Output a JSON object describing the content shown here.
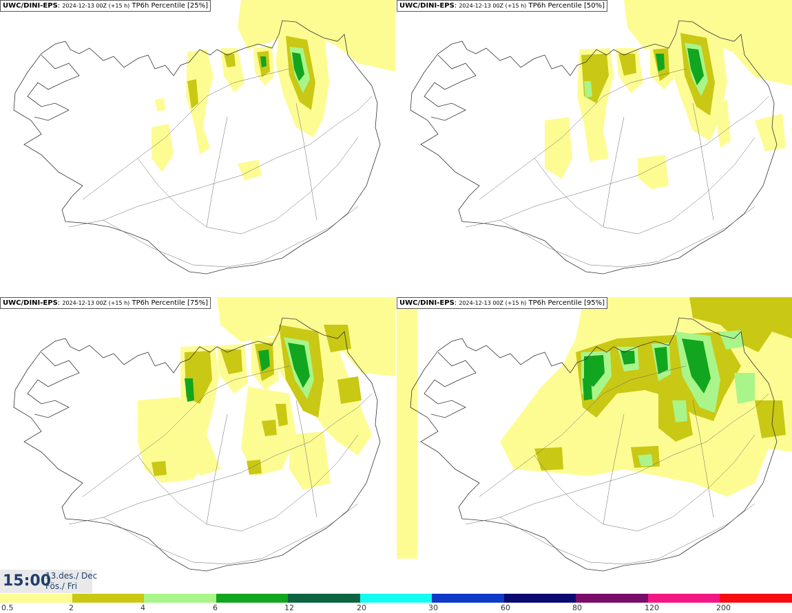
{
  "panels": [
    {
      "model": "UWC/DINI-EPS",
      "meta": "2024-12-13 00Z (+15 h)",
      "field": "TP6h Percentile [25%]"
    },
    {
      "model": "UWC/DINI-EPS",
      "meta": "2024-12-13 00Z (+15 h)",
      "field": "TP6h Percentile [50%]"
    },
    {
      "model": "UWC/DINI-EPS",
      "meta": "2024-12-13 00Z (+15 h)",
      "field": "TP6h Percentile [75%]"
    },
    {
      "model": "UWC/DINI-EPS",
      "meta": "2024-12-13 00Z (+15 h)",
      "field": "TP6h Percentile [95%]"
    }
  ],
  "valid_time": {
    "time": "15:00",
    "date_line1": "13.des./ Dec",
    "date_line2": "Fös./ Fri"
  },
  "legend": {
    "labels": [
      "0.5",
      "2",
      "4",
      "6",
      "12",
      "20",
      "30",
      "60",
      "80",
      "120",
      "200"
    ],
    "colors": [
      "#fdfc93",
      "#c9c814",
      "#a9f58a",
      "#12a520",
      "#0d6441",
      "#14fbf2",
      "#0d3ac7",
      "#0b0a70",
      "#7a0d6a",
      "#f21782",
      "#f70c13"
    ]
  }
}
